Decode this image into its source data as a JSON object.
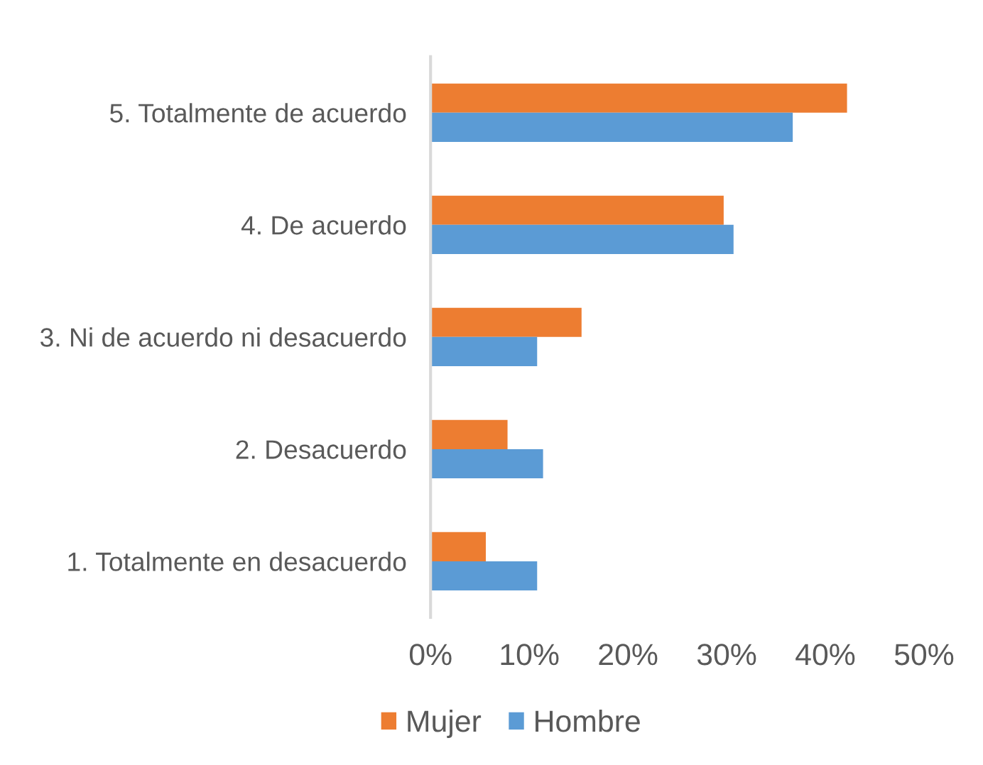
{
  "chart_data": {
    "type": "bar",
    "orientation": "horizontal",
    "categories": [
      "5. Totalmente de acuerdo",
      "4. De acuerdo",
      "3. Ni de acuerdo ni desacuerdo",
      "2. Desacuerdo",
      "1. Totalmente en desacuerdo"
    ],
    "series": [
      {
        "name": "Mujer",
        "color": "#ed7d31",
        "values": [
          42.2,
          29.7,
          15.3,
          7.8,
          5.6
        ]
      },
      {
        "name": "Hombre",
        "color": "#5b9bd5",
        "values": [
          36.7,
          30.7,
          10.8,
          11.4,
          10.8
        ]
      }
    ],
    "xlim": [
      0,
      50
    ],
    "xticks": [
      {
        "value": 0,
        "label": "0%"
      },
      {
        "value": 10,
        "label": "10%"
      },
      {
        "value": 20,
        "label": "20%"
      },
      {
        "value": 30,
        "label": "30%"
      },
      {
        "value": 40,
        "label": "40%"
      },
      {
        "value": 50,
        "label": "50%"
      }
    ],
    "grid": false,
    "legend": "bottom"
  }
}
